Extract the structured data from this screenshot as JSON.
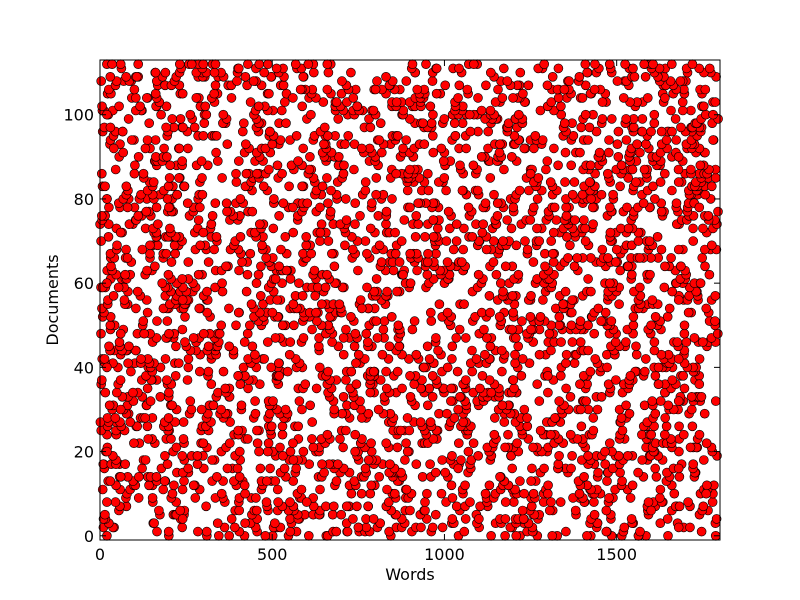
{
  "chart_data": {
    "type": "scatter",
    "xlabel": "Words",
    "ylabel": "Documents",
    "xlim": [
      0,
      1800
    ],
    "ylim": [
      -1,
      113
    ],
    "x_ticks": [
      0,
      500,
      1000,
      1500
    ],
    "y_ticks": [
      0,
      20,
      40,
      60,
      80,
      100
    ],
    "x_tick_labels": [
      "0",
      "500",
      "1000",
      "1500"
    ],
    "y_tick_labels": [
      "0",
      "20",
      "40",
      "60",
      "80",
      "100"
    ],
    "marker_color": "#ff0000",
    "marker_edge_color": "#000000",
    "grid": false,
    "legend": "none",
    "x_range": [
      0,
      1795
    ],
    "documents": 112,
    "points_per_document": 28,
    "points": [
      {
        "x": 20,
        "y": 112
      },
      {
        "x": 35,
        "y": 112
      },
      {
        "x": 60,
        "y": 112
      },
      {
        "x": 190,
        "y": 110
      },
      {
        "x": 300,
        "y": 112
      },
      {
        "x": 660,
        "y": 112
      },
      {
        "x": 1580,
        "y": 112
      },
      {
        "x": 1660,
        "y": 112
      },
      {
        "x": 1770,
        "y": 111
      },
      {
        "x": 100,
        "y": 106
      },
      {
        "x": 240,
        "y": 105
      },
      {
        "x": 560,
        "y": 104
      },
      {
        "x": 1640,
        "y": 104
      },
      {
        "x": 1780,
        "y": 100
      },
      {
        "x": 20,
        "y": 100
      },
      {
        "x": 540,
        "y": 98
      },
      {
        "x": 1600,
        "y": 96
      },
      {
        "x": 1780,
        "y": 94
      },
      {
        "x": 40,
        "y": 92
      },
      {
        "x": 760,
        "y": 92
      },
      {
        "x": 1680,
        "y": 90
      },
      {
        "x": 100,
        "y": 86
      },
      {
        "x": 860,
        "y": 86
      },
      {
        "x": 1250,
        "y": 86
      },
      {
        "x": 1680,
        "y": 84
      },
      {
        "x": 20,
        "y": 80
      },
      {
        "x": 80,
        "y": 78
      },
      {
        "x": 200,
        "y": 78
      },
      {
        "x": 290,
        "y": 78
      },
      {
        "x": 560,
        "y": 78
      },
      {
        "x": 900,
        "y": 78
      },
      {
        "x": 1070,
        "y": 78
      },
      {
        "x": 1200,
        "y": 78
      },
      {
        "x": 1320,
        "y": 78
      },
      {
        "x": 1530,
        "y": 78
      },
      {
        "x": 1740,
        "y": 78
      },
      {
        "x": 60,
        "y": 72
      },
      {
        "x": 300,
        "y": 72
      },
      {
        "x": 640,
        "y": 72
      },
      {
        "x": 1170,
        "y": 70
      },
      {
        "x": 1500,
        "y": 68
      },
      {
        "x": 1680,
        "y": 68
      },
      {
        "x": 80,
        "y": 66
      },
      {
        "x": 520,
        "y": 64
      },
      {
        "x": 880,
        "y": 62
      },
      {
        "x": 1480,
        "y": 60
      },
      {
        "x": 20,
        "y": 60
      },
      {
        "x": 240,
        "y": 56
      },
      {
        "x": 1680,
        "y": 56
      },
      {
        "x": 760,
        "y": 54
      },
      {
        "x": 1160,
        "y": 52
      },
      {
        "x": 1600,
        "y": 50
      },
      {
        "x": 60,
        "y": 48
      },
      {
        "x": 420,
        "y": 46
      },
      {
        "x": 1080,
        "y": 44
      },
      {
        "x": 1680,
        "y": 42
      },
      {
        "x": 20,
        "y": 40
      },
      {
        "x": 520,
        "y": 38
      },
      {
        "x": 900,
        "y": 38
      },
      {
        "x": 1300,
        "y": 38
      },
      {
        "x": 1540,
        "y": 38
      },
      {
        "x": 1740,
        "y": 36
      },
      {
        "x": 200,
        "y": 34
      },
      {
        "x": 1680,
        "y": 32
      },
      {
        "x": 60,
        "y": 30
      },
      {
        "x": 680,
        "y": 30
      },
      {
        "x": 1240,
        "y": 28
      },
      {
        "x": 1720,
        "y": 26
      },
      {
        "x": 300,
        "y": 22
      },
      {
        "x": 560,
        "y": 22
      },
      {
        "x": 1480,
        "y": 22
      },
      {
        "x": 20,
        "y": 20
      },
      {
        "x": 780,
        "y": 18
      },
      {
        "x": 1040,
        "y": 16
      },
      {
        "x": 1680,
        "y": 16
      },
      {
        "x": 60,
        "y": 14
      },
      {
        "x": 420,
        "y": 12
      },
      {
        "x": 1300,
        "y": 10
      },
      {
        "x": 1760,
        "y": 10
      },
      {
        "x": 20,
        "y": 8
      },
      {
        "x": 600,
        "y": 8
      },
      {
        "x": 900,
        "y": 6
      },
      {
        "x": 1600,
        "y": 6
      },
      {
        "x": 240,
        "y": 4
      },
      {
        "x": 1100,
        "y": 4
      },
      {
        "x": 1680,
        "y": 2
      },
      {
        "x": 20,
        "y": 0
      },
      {
        "x": 480,
        "y": 0
      }
    ]
  }
}
